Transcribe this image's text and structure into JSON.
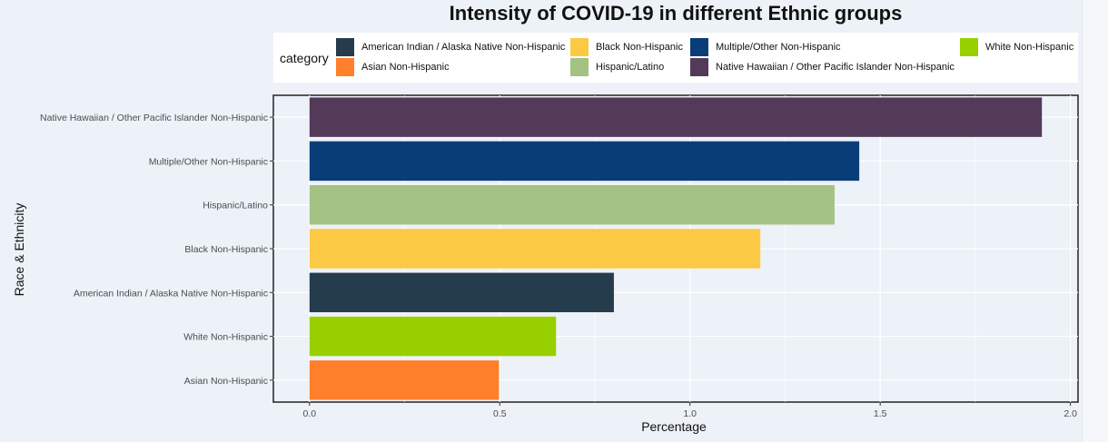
{
  "chart_data": {
    "type": "bar",
    "orientation": "horizontal",
    "title": "Intensity of COVID-19 in different Ethnic groups",
    "xlabel": "Percentage",
    "ylabel": "Race & Ethnicity",
    "xlim": [
      -0.095,
      2.02
    ],
    "xticks": [
      0.0,
      0.5,
      1.0,
      1.5,
      2.0
    ],
    "xtick_labels": [
      "0.0",
      "0.5",
      "1.0",
      "1.5",
      "2.0"
    ],
    "grid": true,
    "legend_title": "category",
    "legend_placement": "top",
    "categories": [
      "Native Hawaiian / Other Pacific Islander Non-Hispanic",
      "Multiple/Other Non-Hispanic",
      "Hispanic/Latino",
      "Black Non-Hispanic",
      "American Indian / Alaska Native Non-Hispanic",
      "White Non-Hispanic",
      "Asian Non-Hispanic"
    ],
    "values": [
      1.925,
      1.445,
      1.38,
      1.185,
      0.8,
      0.648,
      0.498
    ],
    "colors": [
      "#523a58",
      "#083d78",
      "#a3c283",
      "#fcc944",
      "#253c4c",
      "#98cf00",
      "#ff7f2b"
    ],
    "legend": [
      {
        "label": "American Indian / Alaska Native Non-Hispanic",
        "color": "#253c4c"
      },
      {
        "label": "Asian Non-Hispanic",
        "color": "#ff7f2b"
      },
      {
        "label": "Black Non-Hispanic",
        "color": "#fcc944"
      },
      {
        "label": "Hispanic/Latino",
        "color": "#a3c283"
      },
      {
        "label": "Multiple/Other Non-Hispanic",
        "color": "#083d78"
      },
      {
        "label": "Native Hawaiian / Other Pacific Islander Non-Hispanic",
        "color": "#523a58"
      },
      {
        "label": "White Non-Hispanic",
        "color": "#98cf00"
      }
    ]
  }
}
